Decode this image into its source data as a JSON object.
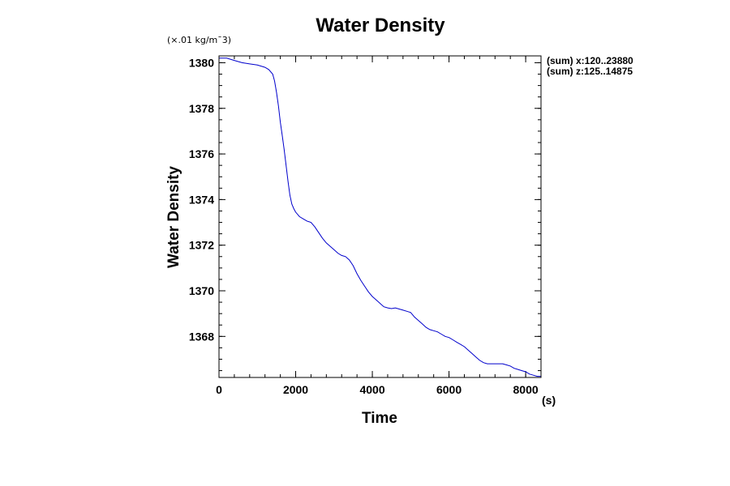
{
  "chart_data": {
    "type": "line",
    "title": "Water Density",
    "xlabel": "Time",
    "ylabel": "Water Density",
    "x_units": "(s)",
    "y_units": "(×.01 kg/m¯3)",
    "annotations": [
      "(sum) x:120..23880",
      "(sum) z:125..14875"
    ],
    "xlim": [
      0,
      8400
    ],
    "ylim": [
      1366.2,
      1380.3
    ],
    "x_ticks": [
      0,
      2000,
      4000,
      6000,
      8000
    ],
    "x_tick_labels": [
      "0",
      "2000",
      "4000",
      "6000",
      "8000"
    ],
    "y_ticks": [
      1368,
      1370,
      1372,
      1374,
      1376,
      1378,
      1380
    ],
    "y_tick_labels": [
      "1368",
      "1370",
      "1372",
      "1374",
      "1376",
      "1378",
      "1380"
    ],
    "x_minor_step": 400,
    "y_minor_step": 0.5,
    "line_color": "#0000cc",
    "series": [
      {
        "x": [
          0,
          200,
          400,
          600,
          800,
          1000,
          1200,
          1300,
          1400,
          1450,
          1500,
          1550,
          1600,
          1650,
          1700,
          1750,
          1800,
          1850,
          1900,
          1950,
          2000,
          2100,
          2200,
          2300,
          2400,
          2500,
          2600,
          2700,
          2800,
          2900,
          3000,
          3100,
          3200,
          3300,
          3400,
          3500,
          3600,
          3700,
          3800,
          3900,
          4000,
          4100,
          4200,
          4300,
          4400,
          4500,
          4600,
          4700,
          4800,
          4900,
          5000,
          5100,
          5200,
          5300,
          5400,
          5500,
          5600,
          5700,
          5800,
          5900,
          6000,
          6100,
          6200,
          6300,
          6400,
          6500,
          6600,
          6700,
          6800,
          6900,
          7000,
          7100,
          7200,
          7300,
          7400,
          7500,
          7600,
          7700,
          7800,
          7900,
          8000,
          8100,
          8200,
          8300,
          8400
        ],
        "y": [
          1380.2,
          1380.2,
          1380.1,
          1380.0,
          1379.95,
          1379.9,
          1379.8,
          1379.7,
          1379.5,
          1379.2,
          1378.7,
          1378.1,
          1377.4,
          1376.8,
          1376.2,
          1375.5,
          1374.8,
          1374.2,
          1373.8,
          1373.6,
          1373.45,
          1373.25,
          1373.15,
          1373.05,
          1373.0,
          1372.8,
          1372.55,
          1372.3,
          1372.1,
          1371.95,
          1371.8,
          1371.65,
          1371.55,
          1371.5,
          1371.35,
          1371.1,
          1370.75,
          1370.45,
          1370.2,
          1369.95,
          1369.75,
          1369.6,
          1369.45,
          1369.3,
          1369.25,
          1369.22,
          1369.25,
          1369.2,
          1369.15,
          1369.1,
          1369.05,
          1368.85,
          1368.7,
          1368.55,
          1368.4,
          1368.3,
          1368.25,
          1368.2,
          1368.1,
          1368.0,
          1367.95,
          1367.85,
          1367.75,
          1367.65,
          1367.55,
          1367.4,
          1367.25,
          1367.1,
          1366.95,
          1366.85,
          1366.8,
          1366.8,
          1366.8,
          1366.8,
          1366.8,
          1366.75,
          1366.7,
          1366.6,
          1366.55,
          1366.5,
          1366.45,
          1366.35,
          1366.3,
          1366.25,
          1366.25
        ]
      }
    ]
  }
}
